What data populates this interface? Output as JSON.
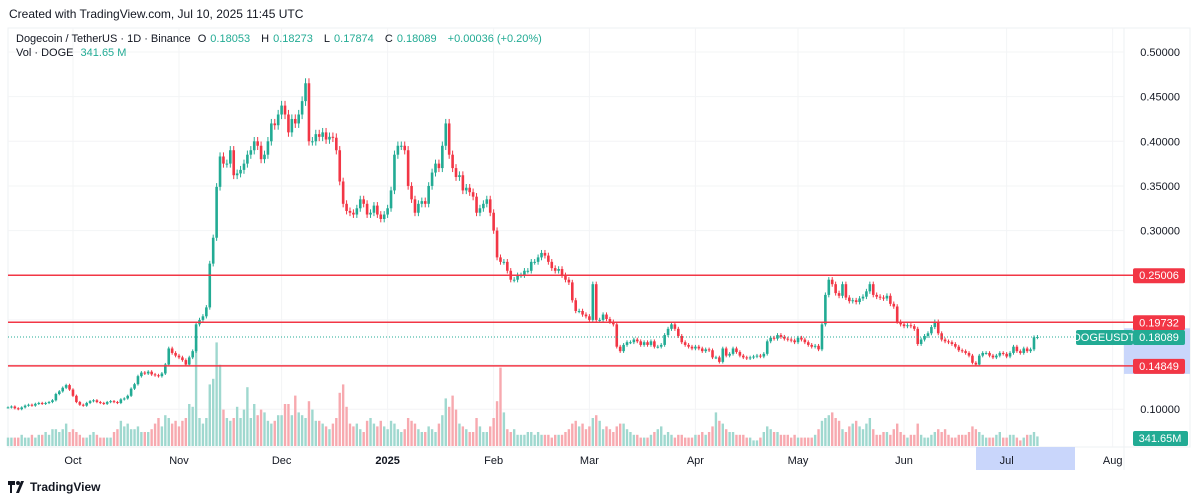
{
  "header": {
    "created": "Created with TradingView.com, Jul 10, 2025 11:45 UTC"
  },
  "legend": {
    "symbol": "Dogecoin / TetherUS · 1D · Binance",
    "o_label": "O",
    "o": "0.18053",
    "h_label": "H",
    "h": "0.18273",
    "l_label": "L",
    "l": "0.17874",
    "c_label": "C",
    "c": "0.18089",
    "change": "+0.00036 (+0.20%)",
    "vol_label": "Vol · DOGE",
    "vol": "341.65 M"
  },
  "colors": {
    "up": "#22ab94",
    "down": "#f23645",
    "up_vol": "#9fd8cf",
    "down_vol": "#f7a9af",
    "level": "#f23645",
    "highlight": "#c9d6fb"
  },
  "price_axis": {
    "ticks": [
      "0.50000",
      "0.45000",
      "0.40000",
      "0.35000",
      "0.30000",
      "0.10000"
    ],
    "tick_values": [
      0.5,
      0.45,
      0.4,
      0.35,
      0.3,
      0.1
    ]
  },
  "levels": [
    {
      "value": 0.25006,
      "label": "0.25006"
    },
    {
      "value": 0.19732,
      "label": "0.19732"
    },
    {
      "value": 0.14849,
      "label": "0.14849"
    }
  ],
  "current": {
    "symbol": "DOGEUSDT",
    "value": 0.18089,
    "label": "0.18089",
    "volume_label": "341.65M"
  },
  "time_axis": {
    "labels": [
      "Oct",
      "Nov",
      "Dec",
      "2025",
      "Feb",
      "Mar",
      "Apr",
      "May",
      "Jun",
      "Jul",
      "Aug"
    ],
    "day_index": [
      19,
      50,
      80,
      111,
      142,
      170,
      201,
      231,
      262,
      292,
      323
    ]
  },
  "chart_data": {
    "type": "candlestick",
    "start_date": "2024-09-12",
    "end_date": "2025-07-10",
    "closes": [
      0.102,
      0.103,
      0.101,
      0.1,
      0.102,
      0.104,
      0.105,
      0.104,
      0.106,
      0.107,
      0.106,
      0.107,
      0.108,
      0.11,
      0.117,
      0.12,
      0.124,
      0.127,
      0.122,
      0.115,
      0.108,
      0.105,
      0.104,
      0.107,
      0.109,
      0.11,
      0.108,
      0.107,
      0.106,
      0.108,
      0.109,
      0.108,
      0.107,
      0.111,
      0.112,
      0.115,
      0.123,
      0.128,
      0.137,
      0.141,
      0.14,
      0.142,
      0.139,
      0.138,
      0.137,
      0.14,
      0.15,
      0.168,
      0.163,
      0.16,
      0.158,
      0.155,
      0.15,
      0.158,
      0.165,
      0.195,
      0.2,
      0.204,
      0.214,
      0.263,
      0.292,
      0.349,
      0.383,
      0.375,
      0.375,
      0.39,
      0.362,
      0.364,
      0.368,
      0.375,
      0.385,
      0.39,
      0.4,
      0.395,
      0.38,
      0.385,
      0.4,
      0.42,
      0.418,
      0.43,
      0.44,
      0.43,
      0.41,
      0.425,
      0.42,
      0.43,
      0.445,
      0.465,
      0.4,
      0.4,
      0.408,
      0.405,
      0.41,
      0.402,
      0.405,
      0.404,
      0.39,
      0.355,
      0.33,
      0.322,
      0.32,
      0.318,
      0.325,
      0.335,
      0.33,
      0.318,
      0.32,
      0.328,
      0.318,
      0.313,
      0.318,
      0.325,
      0.345,
      0.385,
      0.395,
      0.395,
      0.39,
      0.35,
      0.335,
      0.32,
      0.33,
      0.333,
      0.33,
      0.35,
      0.365,
      0.375,
      0.37,
      0.395,
      0.42,
      0.385,
      0.37,
      0.36,
      0.362,
      0.345,
      0.348,
      0.343,
      0.338,
      0.32,
      0.325,
      0.33,
      0.335,
      0.32,
      0.3,
      0.27,
      0.265,
      0.265,
      0.255,
      0.245,
      0.245,
      0.25,
      0.25,
      0.255,
      0.255,
      0.265,
      0.265,
      0.27,
      0.275,
      0.272,
      0.265,
      0.258,
      0.255,
      0.257,
      0.25,
      0.245,
      0.242,
      0.222,
      0.21,
      0.21,
      0.206,
      0.204,
      0.2,
      0.24,
      0.2,
      0.2,
      0.206,
      0.201,
      0.198,
      0.195,
      0.17,
      0.165,
      0.172,
      0.175,
      0.175,
      0.178,
      0.176,
      0.172,
      0.175,
      0.172,
      0.176,
      0.17,
      0.17,
      0.172,
      0.183,
      0.19,
      0.195,
      0.19,
      0.182,
      0.175,
      0.172,
      0.17,
      0.168,
      0.17,
      0.168,
      0.165,
      0.167,
      0.166,
      0.158,
      0.158,
      0.153,
      0.168,
      0.16,
      0.162,
      0.168,
      0.164,
      0.16,
      0.158,
      0.157,
      0.158,
      0.159,
      0.16,
      0.159,
      0.162,
      0.176,
      0.18,
      0.179,
      0.183,
      0.181,
      0.179,
      0.178,
      0.177,
      0.175,
      0.18,
      0.178,
      0.175,
      0.172,
      0.17,
      0.171,
      0.167,
      0.195,
      0.228,
      0.245,
      0.24,
      0.23,
      0.227,
      0.24,
      0.225,
      0.221,
      0.222,
      0.22,
      0.224,
      0.226,
      0.232,
      0.24,
      0.228,
      0.226,
      0.225,
      0.224,
      0.227,
      0.218,
      0.215,
      0.198,
      0.195,
      0.193,
      0.194,
      0.193,
      0.19,
      0.173,
      0.178,
      0.182,
      0.185,
      0.192,
      0.198,
      0.185,
      0.178,
      0.176,
      0.175,
      0.173,
      0.17,
      0.166,
      0.165,
      0.163,
      0.16,
      0.152,
      0.15,
      0.16,
      0.163,
      0.163,
      0.16,
      0.158,
      0.16,
      0.163,
      0.162,
      0.159,
      0.163,
      0.17,
      0.165,
      0.163,
      0.168,
      0.165,
      0.167,
      0.18053,
      0.18089
    ],
    "volumes_billion": [
      0.3,
      0.3,
      0.3,
      0.3,
      0.4,
      0.3,
      0.3,
      0.4,
      0.3,
      0.4,
      0.4,
      0.5,
      0.4,
      0.6,
      0.6,
      0.5,
      0.6,
      0.8,
      0.5,
      0.6,
      0.5,
      0.4,
      0.3,
      0.3,
      0.4,
      0.5,
      0.4,
      0.3,
      0.3,
      0.3,
      0.3,
      0.5,
      0.6,
      0.9,
      0.7,
      0.8,
      0.6,
      0.6,
      0.7,
      0.5,
      0.5,
      0.5,
      0.6,
      0.8,
      1.0,
      0.7,
      1.1,
      1.0,
      0.8,
      0.9,
      0.7,
      0.9,
      1.0,
      1.5,
      1.4,
      3.6,
      1.0,
      0.8,
      1.0,
      2.2,
      2.4,
      3.7,
      2.9,
      1.3,
      1.0,
      0.9,
      1.0,
      1.4,
      1.0,
      1.3,
      2.1,
      1.0,
      1.5,
      1.1,
      1.3,
      1.2,
      0.9,
      0.8,
      0.9,
      1.1,
      1.1,
      1.5,
      1.5,
      1.1,
      1.8,
      1.2,
      1.1,
      1.0,
      1.6,
      1.3,
      0.9,
      0.9,
      0.8,
      0.7,
      0.6,
      0.8,
      1.0,
      1.9,
      2.2,
      1.4,
      0.8,
      0.7,
      0.8,
      0.6,
      0.5,
      0.9,
      1.0,
      0.8,
      0.7,
      0.9,
      0.7,
      0.6,
      0.9,
      0.8,
      0.6,
      0.5,
      0.6,
      1.0,
      0.9,
      0.8,
      0.6,
      0.5,
      0.5,
      0.7,
      0.6,
      0.5,
      0.8,
      1.1,
      1.7,
      1.4,
      1.8,
      1.3,
      0.8,
      0.7,
      0.6,
      0.5,
      0.5,
      1.0,
      0.7,
      0.5,
      0.5,
      0.7,
      1.0,
      1.6,
      2.8,
      1.2,
      0.6,
      0.5,
      0.6,
      0.4,
      0.4,
      0.4,
      0.5,
      0.5,
      0.4,
      0.5,
      0.4,
      0.4,
      0.4,
      0.3,
      0.4,
      0.4,
      0.4,
      0.5,
      0.6,
      0.8,
      0.9,
      0.7,
      0.8,
      0.6,
      0.7,
      1.0,
      1.1,
      0.9,
      0.6,
      0.7,
      0.6,
      0.5,
      0.7,
      0.8,
      0.8,
      0.6,
      0.5,
      0.4,
      0.4,
      0.3,
      0.3,
      0.3,
      0.4,
      0.5,
      0.6,
      0.7,
      0.4,
      0.5,
      0.4,
      0.3,
      0.4,
      0.4,
      0.3,
      0.3,
      0.3,
      0.4,
      0.4,
      0.5,
      0.4,
      0.5,
      0.7,
      1.2,
      0.9,
      0.8,
      0.6,
      0.5,
      0.5,
      0.4,
      0.4,
      0.4,
      0.3,
      0.3,
      0.2,
      0.2,
      0.3,
      0.5,
      0.7,
      0.6,
      0.5,
      0.5,
      0.4,
      0.4,
      0.4,
      0.3,
      0.4,
      0.3,
      0.3,
      0.3,
      0.3,
      0.3,
      0.4,
      0.6,
      0.9,
      1.0,
      1.1,
      1.2,
      1.0,
      0.9,
      0.6,
      0.5,
      0.7,
      0.8,
      0.9,
      0.7,
      0.6,
      0.8,
      1.0,
      0.6,
      0.4,
      0.4,
      0.5,
      0.5,
      0.4,
      0.6,
      0.8,
      0.5,
      0.4,
      0.3,
      0.4,
      0.4,
      0.8,
      0.4,
      0.3,
      0.3,
      0.4,
      0.5,
      0.6,
      0.5,
      0.6,
      0.4,
      0.3,
      0.3,
      0.4,
      0.4,
      0.4,
      0.5,
      0.7,
      0.6,
      0.5,
      0.4,
      0.3,
      0.3,
      0.3,
      0.4,
      0.5,
      0.3,
      0.3,
      0.4,
      0.4,
      0.3,
      0.2,
      0.3,
      0.4,
      0.4,
      0.5,
      0.34165
    ]
  },
  "footer": {
    "brand": "TradingView"
  }
}
